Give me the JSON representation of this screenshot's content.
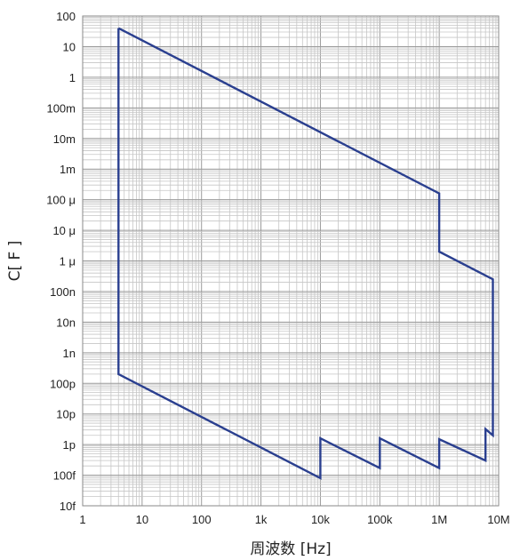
{
  "chart_data": {
    "type": "line",
    "title": "",
    "xlabel": "周波数 [Hz]",
    "ylabel": "C[ F ]",
    "x_scale": "log",
    "y_scale": "log",
    "xlim": [
      1,
      10000000
    ],
    "ylim": [
      1e-14,
      100
    ],
    "grid": true,
    "line_color": "#2a3f8f",
    "x_ticks": [
      {
        "value": 1,
        "label": "1"
      },
      {
        "value": 10,
        "label": "10"
      },
      {
        "value": 100,
        "label": "100"
      },
      {
        "value": 1000,
        "label": "1k"
      },
      {
        "value": 10000,
        "label": "10k"
      },
      {
        "value": 100000,
        "label": "100k"
      },
      {
        "value": 1000000,
        "label": "1M"
      },
      {
        "value": 10000000,
        "label": "10M"
      }
    ],
    "y_ticks": [
      {
        "value": 100,
        "label": "100"
      },
      {
        "value": 10,
        "label": "10"
      },
      {
        "value": 1,
        "label": "1"
      },
      {
        "value": 0.1,
        "label": "100m"
      },
      {
        "value": 0.01,
        "label": "10m"
      },
      {
        "value": 0.001,
        "label": "1m"
      },
      {
        "value": 0.0001,
        "label": "100 μ"
      },
      {
        "value": 1e-05,
        "label": "10 μ"
      },
      {
        "value": 1e-06,
        "label": "1 μ"
      },
      {
        "value": 1e-07,
        "label": "100n"
      },
      {
        "value": 1e-08,
        "label": "10n"
      },
      {
        "value": 1e-09,
        "label": "1n"
      },
      {
        "value": 1e-10,
        "label": "100p"
      },
      {
        "value": 1e-11,
        "label": "10p"
      },
      {
        "value": 1e-12,
        "label": "1p"
      },
      {
        "value": 1e-13,
        "label": "100f"
      },
      {
        "value": 1e-14,
        "label": "10f"
      }
    ],
    "series": [
      {
        "points": [
          [
            4,
            40
          ],
          [
            1000000,
            0.00016
          ],
          [
            1000000,
            2e-06
          ],
          [
            8000000,
            2.5e-07
          ],
          [
            8000000,
            2e-12
          ],
          [
            6000000,
            3.2e-12
          ],
          [
            6000000,
            3e-13
          ],
          [
            1000000,
            1.5e-12
          ],
          [
            1000000,
            1.7e-13
          ],
          [
            100000,
            1.6e-12
          ],
          [
            100000,
            1.7e-13
          ],
          [
            10000,
            1.6e-12
          ],
          [
            10000,
            8e-14
          ],
          [
            4,
            2e-10
          ],
          [
            4,
            40
          ]
        ]
      }
    ]
  }
}
